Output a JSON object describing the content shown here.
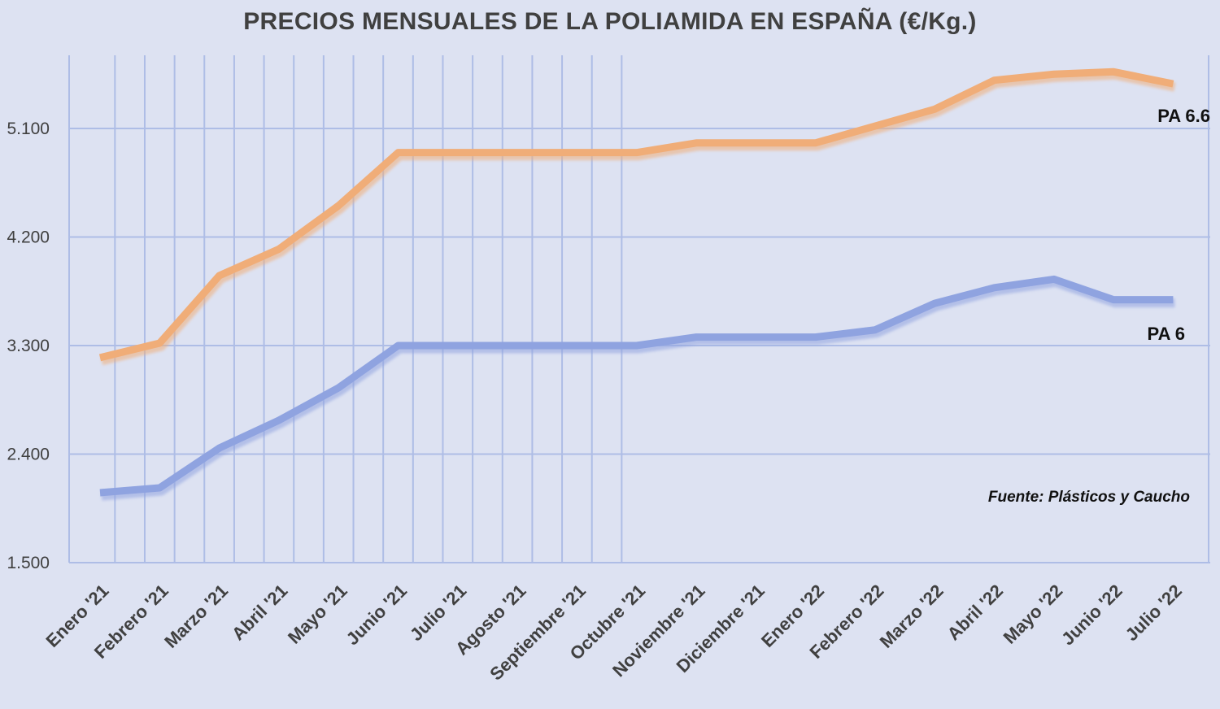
{
  "chart_data": {
    "type": "line",
    "title": "PRECIOS MENSUALES DE LA POLIAMIDA EN ESPAÑA (€/Kg.)",
    "categories": [
      "Enero '21",
      "Febrero '21",
      "Marzo '21",
      "Abril '21",
      "Mayo '21",
      "Junio '21",
      "Julio '21",
      "Agosto '21",
      "Septiembre '21",
      "Octubre '21",
      "Noviembre '21",
      "Diciembre '21",
      "Enero '22",
      "Febrero '22",
      "Marzo '22",
      "Abril '22",
      "Mayo '22",
      "Junio '22",
      "Julio '22"
    ],
    "x": [
      0,
      0.5,
      1,
      1.5,
      2,
      2.5,
      3,
      3.5,
      4,
      4.5,
      5,
      5.5,
      6,
      6.5,
      7,
      7.5,
      8,
      8.5,
      9,
      9.5,
      10,
      10.5,
      11,
      11.5,
      12,
      12.5,
      13,
      13.5,
      14,
      14.5,
      15,
      15.5,
      16,
      16.5,
      17,
      17.5,
      18
    ],
    "series": [
      {
        "name": "PA 6.6",
        "color": "#f0ad78",
        "x": [
          0,
          1,
          2,
          3,
          4,
          5,
          6,
          7,
          8,
          9,
          10,
          11,
          12,
          13,
          14,
          15,
          16,
          17,
          18
        ],
        "values": [
          3.2,
          3.32,
          3.88,
          4.1,
          4.46,
          4.9,
          4.9,
          4.9,
          4.9,
          4.9,
          4.98,
          4.98,
          4.98,
          5.12,
          5.26,
          5.5,
          5.55,
          5.57,
          5.47
        ]
      },
      {
        "name": "PA 6",
        "color": "#8fa3e0",
        "x": [
          0,
          1,
          2,
          3,
          4,
          5,
          6,
          7,
          8,
          9,
          10,
          11,
          12,
          13,
          14,
          15,
          16,
          17,
          18
        ],
        "values": [
          2.08,
          2.12,
          2.45,
          2.68,
          2.95,
          3.3,
          3.3,
          3.3,
          3.3,
          3.3,
          3.37,
          3.37,
          3.37,
          3.43,
          3.65,
          3.78,
          3.85,
          3.68,
          3.68
        ]
      }
    ],
    "yticks": [
      "1.500",
      "2.400",
      "3.300",
      "4.200",
      "5.100"
    ],
    "ytick_values": [
      1.5,
      2.4,
      3.3,
      4.2,
      5.1
    ],
    "ylim": [
      1.5,
      5.7
    ],
    "xlabel": "",
    "ylabel": "",
    "grid": true,
    "annotations": [
      "Fuente: Plásticos y Caucho"
    ]
  }
}
